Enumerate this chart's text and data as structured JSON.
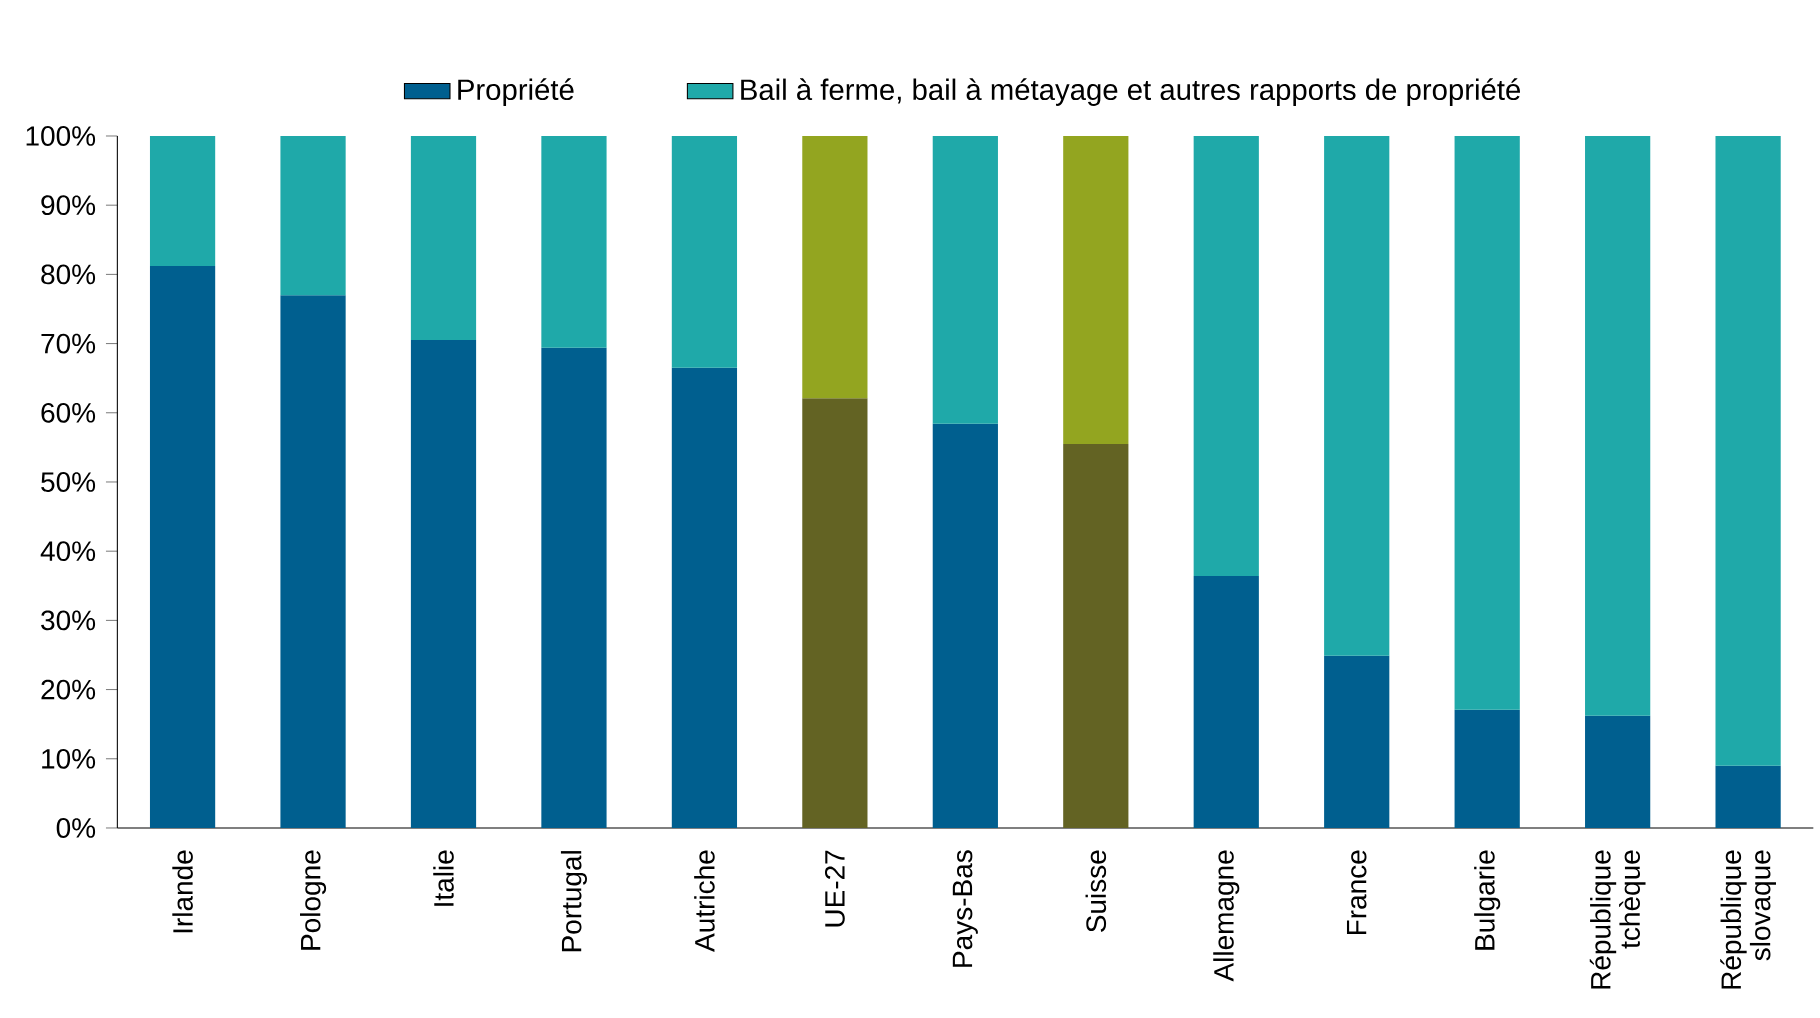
{
  "chart_data": {
    "type": "bar",
    "stacked": true,
    "categories": [
      "Irlande",
      "Pologne",
      "Italie",
      "Portugal",
      "Autriche",
      "UE-27",
      "Pays-Bas",
      "Suisse",
      "Allemagne",
      "France",
      "Bulgarie",
      "République tchèque",
      "République slovaque"
    ],
    "series": [
      {
        "name": "Propriété",
        "color": "#005f8f",
        "colors": [
          "#005f8f",
          "#005f8f",
          "#005f8f",
          "#005f8f",
          "#005f8f",
          "#636323",
          "#005f8f",
          "#636323",
          "#005f8f",
          "#005f8f",
          "#005f8f",
          "#005f8f",
          "#005f8f"
        ],
        "values": [
          81.2,
          77,
          70.5,
          69.4,
          66.5,
          62.1,
          58.4,
          55.5,
          36.4,
          24.9,
          17.1,
          16.2,
          9
        ]
      },
      {
        "name": "Bail à ferme, bail à métayage et autres rapports de propriété",
        "color": "#1fa9a9",
        "colors": [
          "#1fa9a9",
          "#1fa9a9",
          "#1fa9a9",
          "#1fa9a9",
          "#1fa9a9",
          "#93a520",
          "#1fa9a9",
          "#93a520",
          "#1fa9a9",
          "#1fa9a9",
          "#1fa9a9",
          "#1fa9a9",
          "#1fa9a9"
        ],
        "values": [
          18.8,
          23,
          29.5,
          30.6,
          33.5,
          37.9,
          41.6,
          44.5,
          63.6,
          75.1,
          82.9,
          83.8,
          91
        ]
      }
    ],
    "ylim": [
      0,
      100
    ],
    "yticks": [
      {
        "value": 0,
        "label": "0%"
      },
      {
        "value": 10,
        "label": "10%"
      },
      {
        "value": 20,
        "label": "20%"
      },
      {
        "value": 30,
        "label": "30%"
      },
      {
        "value": 40,
        "label": "40%"
      },
      {
        "value": 50,
        "label": "50%"
      },
      {
        "value": 60,
        "label": "60%"
      },
      {
        "value": 70,
        "label": "70%"
      },
      {
        "value": 80,
        "label": "80%"
      },
      {
        "value": 90,
        "label": "90%"
      },
      {
        "value": 100,
        "label": "100%"
      }
    ],
    "legend": "top",
    "grid": false
  }
}
